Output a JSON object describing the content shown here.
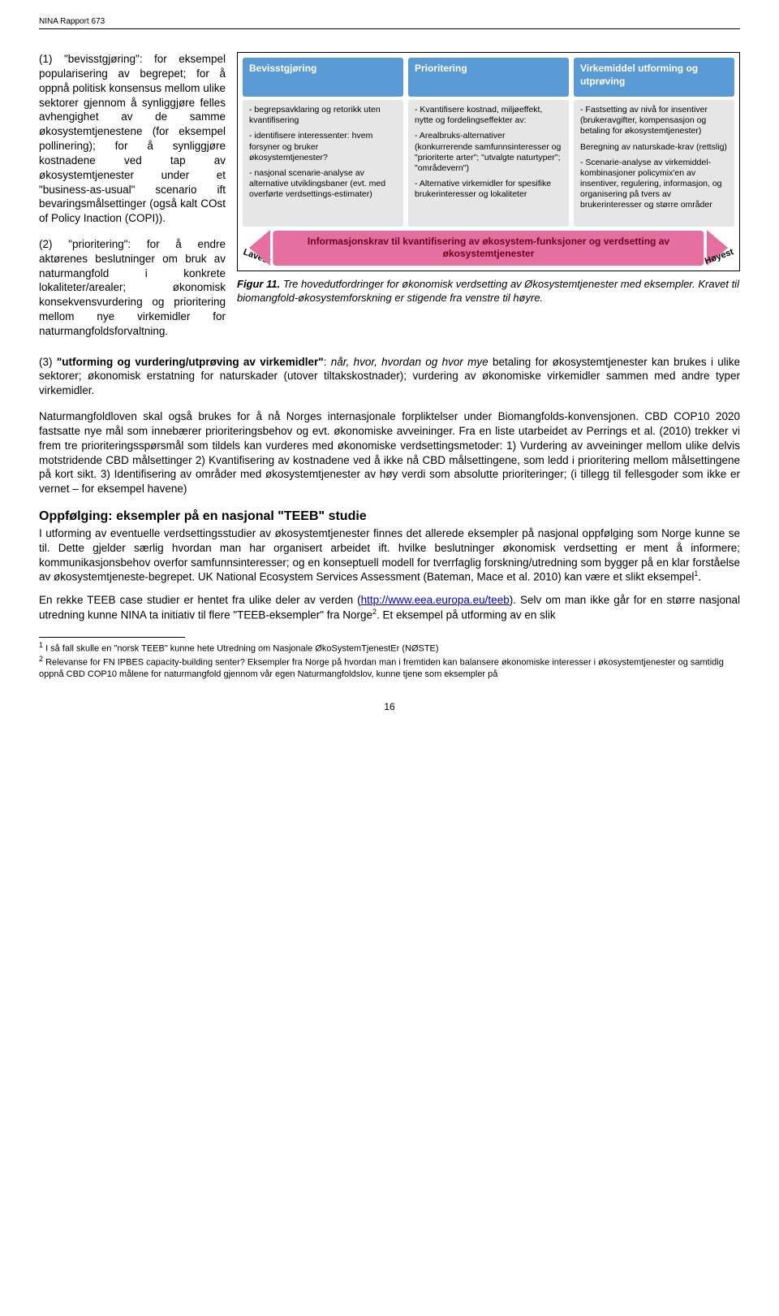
{
  "header": "NINA Rapport 673",
  "left": {
    "p1": "(1) \"bevisstgjøring\": for eksempel popularisering av begrepet; for å oppnå politisk konsensus mellom ulike sektorer gjennom å synliggjøre felles avhengighet av de samme økosystemtjenestene (for eksempel pollinering); for å synliggjøre kostnadene ved tap av økosystemtjenester under et \"business-as-usual\" scenario ift bevaringsmålsettinger (også kalt COst of Policy Inaction (COPI)).",
    "p2": "(2) \"prioritering\": for å endre aktørenes beslutninger om bruk av naturmangfold i konkrete lokaliteter/arealer; økonomisk konsekvensvurdering og prioritering mellom nye virkemidler for naturmangfoldsforvaltning."
  },
  "diagram": {
    "heads": {
      "a": "Bevisstgjøring",
      "b": "Prioritering",
      "c": "Virkemiddel utforming og utprøving"
    },
    "col_a": [
      "- begrepsavklaring og retorikk uten kvantifisering",
      "- identifisere interessenter: hvem forsyner og bruker økosystemtjenester?",
      "- nasjonal scenarie-analyse av alternative utviklingsbaner (evt. med overførte verdsettings-estimater)"
    ],
    "col_b": [
      "- Kvantifisere kostnad, miljøeffekt, nytte og fordelingseffekter av:",
      "- Arealbruks-alternativer (konkurrerende samfunnsinteresser og \"prioriterte arter\"; \"utvalgte naturtyper\"; \"områdevern\")",
      "- Alternative virkemidler for spesifike brukerinteresser og lokaliteter"
    ],
    "col_c": [
      "- Fastsetting av nivå for insentiver (brukeravgifter, kompensasjon og betaling for økosystemtjenester)",
      "Beregning av naturskade-krav (rettslig)",
      "- Scenarie-analyse av virkemiddel-kombinasjoner policymix'en av insentiver, regulering, informasjon, og organisering på tvers av brukerinteresser og større områder"
    ],
    "banner": "Informasjonskrav til kvantifisering av økosystem-funksjoner og verdsetting av økosystemtjenester",
    "end_left": "Lavest",
    "end_right": "Høyest",
    "colors": {
      "head_bg": "#5b9bd5",
      "body_bg": "#e6e6e6",
      "banner_bg": "#e56fa0"
    }
  },
  "figcap": "Figur 11. Tre hovedutfordringer for økonomisk verdsetting av Økosystemtjenester med eksempler. Kravet til biomangfold-økosystemforskning er stigende fra venstre til høyre.",
  "body": {
    "p3": "(3) \"utforming og vurdering/utprøving av virkemidler\": når, hvor, hvordan og hvor mye betaling for økosystemtjenester kan brukes i ulike sektorer; økonomisk erstatning for naturskader (utover tiltakskostnader); vurdering av økonomiske virkemidler sammen med andre typer virkemidler.",
    "p4": "Naturmangfoldloven skal også brukes for å nå Norges internasjonale forpliktelser under Biomangfolds-konvensjonen. CBD COP10 2020 fastsatte nye mål som innebærer prioriteringsbehov og evt. økonomiske avveininger. Fra en liste utarbeidet av Perrings et al. (2010) trekker vi frem tre prioriteringsspørsmål som tildels kan vurderes med økonomiske verdsettingsmetoder: 1) Vurdering av avveininger mellom ulike delvis motstridende CBD målsettinger 2) Kvantifisering av kostnadene ved å ikke nå CBD målsettingene, som ledd i prioritering mellom målsettingene på kort sikt. 3) Identifisering av områder med økosystemtjenester av høy verdi som absolutte prioriteringer; (i tillegg til fellesgoder som ikke er vernet – for eksempel havene)",
    "h": "Oppfølging: eksempler på en nasjonal \"TEEB\" studie",
    "p5": "I utforming av eventuelle verdsettingsstudier av økosystemtjenester finnes det allerede eksempler på nasjonal oppfølging som Norge kunne se til. Dette gjelder særlig hvordan man har organisert arbeidet ift. hvilke beslutninger økonomisk verdsetting er ment å informere; kommunikasjonsbehov overfor samfunnsinteresser; og en konseptuell modell for tverrfaglig forskning/utredning som bygger på en klar forståelse av økosystemtjeneste-begrepet. UK National Ecosystem Services Assessment (Bateman, Mace et al. 2010) kan være et slikt eksempel",
    "sup1": "1",
    "p5end": ".",
    "p6a": "En rekke TEEB case studier er hentet fra ulike deler av verden (",
    "link": "http://www.eea.europa.eu/teeb",
    "p6b": "). Selv om man ikke går for en større nasjonal utredning kunne NINA ta initiativ til flere \"TEEB-eksempler\" fra Norge",
    "sup2": "2",
    "p6c": ". Et eksempel på utforming av en slik"
  },
  "footnotes": {
    "f1": " I så fall skulle en \"norsk TEEB\" kunne hete Utredning om Nasjonale ØkoSystemTjenestEr (NØSTE)",
    "f2": " Relevanse for FN IPBES capacity-building senter? Eksempler fra Norge på hvordan man i fremtiden kan balansere økonomiske interesser i økosystemtjenester og samtidig oppnå CBD COP10 målene for naturmangfold gjennom vår egen Naturmangfoldslov, kunne tjene som eksempler på"
  },
  "pagenum": "16"
}
